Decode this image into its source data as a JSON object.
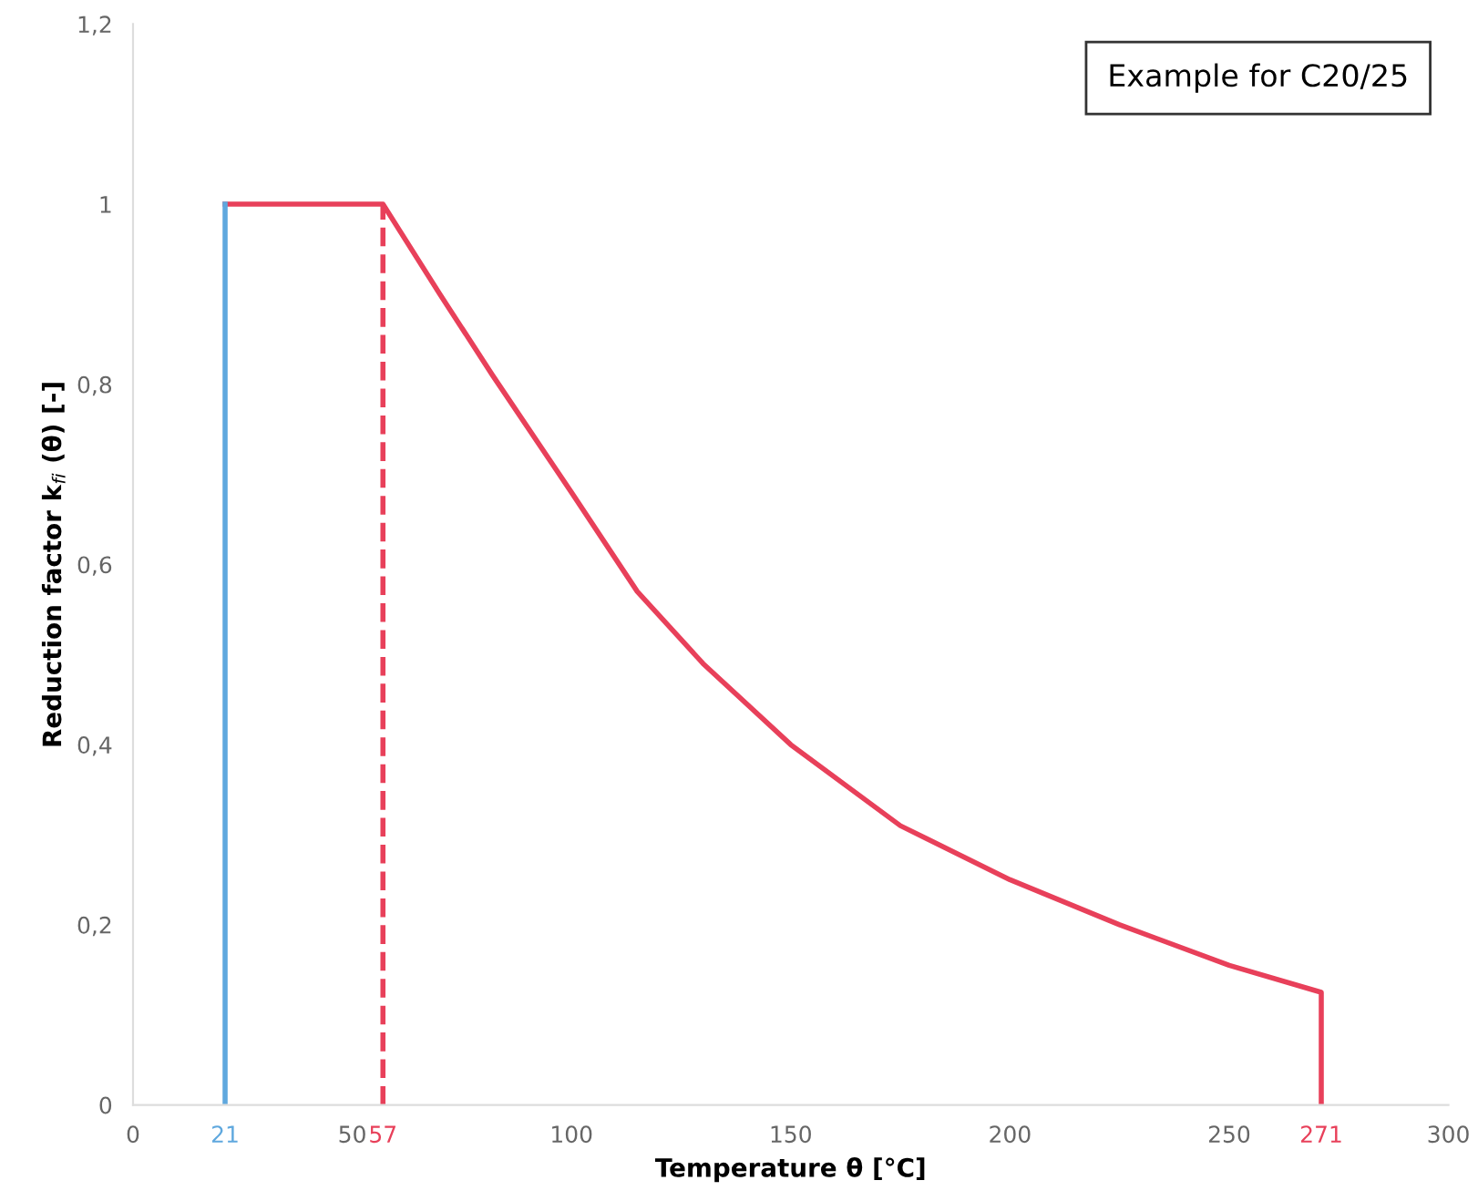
{
  "chart_data": {
    "type": "line",
    "xlabel": "Temperature θ [°C]",
    "ylabel": "Reduction factor k$_{fi}$ (θ) [-]",
    "annotations": [
      "Example for C20/25"
    ],
    "series": [
      {
        "color": "#e8405a",
        "x": [
          21,
          57,
          70,
          82,
          100,
          115,
          130,
          150,
          175,
          200,
          225,
          250,
          271,
          271
        ],
        "values": [
          1,
          1,
          0.9,
          0.81,
          0.68,
          0.57,
          0.49,
          0.4,
          0.31,
          0.25,
          0.2,
          0.155,
          0.125,
          0
        ]
      },
      {
        "color": "#5fa8de",
        "x": [
          21,
          21
        ],
        "values": [
          0,
          1
        ]
      },
      {
        "color": "#e8405a",
        "x": [
          57,
          57
        ],
        "values": [
          0,
          1
        ],
        "line_style": "dashed"
      }
    ],
    "xlim": [
      0,
      300
    ],
    "xticks": [
      0,
      21,
      50,
      57,
      100,
      150,
      200,
      250,
      271,
      300
    ],
    "ylim": [
      0,
      1.2
    ],
    "yticks": [
      0,
      {
        "value": 0.2,
        "label": "0,2"
      },
      {
        "value": 0.4,
        "label": "0,4"
      },
      {
        "value": 0.6,
        "label": "0,6"
      },
      {
        "value": 0.8,
        "label": "0,8"
      },
      1,
      {
        "value": 1.2,
        "label": "1,2"
      }
    ],
    "grid": false,
    "legend": false,
    "marker": "none",
    "line_style": "solid"
  }
}
